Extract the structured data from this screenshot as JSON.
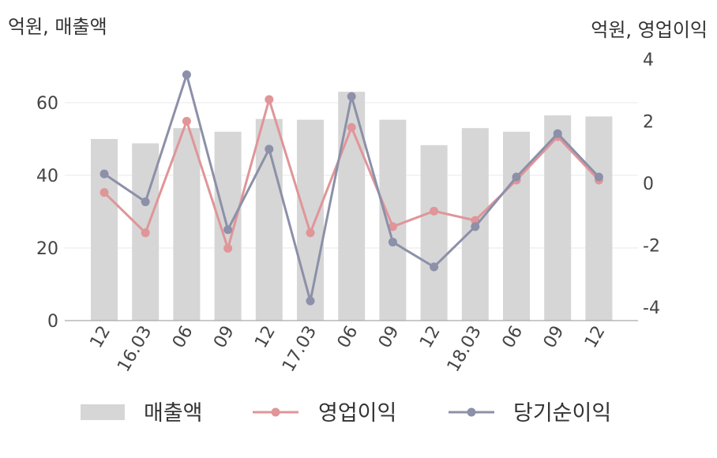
{
  "chart_data": {
    "type": "bar+line",
    "categories": [
      "12",
      "16.03",
      "06",
      "09",
      "12",
      "17.03",
      "06",
      "09",
      "12",
      "18.03",
      "06",
      "09",
      "12"
    ],
    "left_axis": {
      "label": "억원, 매출액",
      "ylim": [
        0,
        70
      ],
      "ticks": [
        "0",
        "20",
        "40",
        "60"
      ]
    },
    "right_axis": {
      "label": "억원, 영업이익",
      "ylim": [
        -4.3,
        4
      ],
      "ticks": [
        "-4",
        "-2",
        "0",
        "2",
        "4"
      ]
    },
    "grid": "horizontal",
    "legend_position": "bottom",
    "series": [
      {
        "name": "매출액",
        "type": "bar",
        "axis": "left",
        "values": [
          50,
          48.8,
          53,
          52,
          55.5,
          55.3,
          63,
          55.3,
          48.3,
          53,
          52,
          56.5,
          56.2
        ]
      },
      {
        "name": "영업이익",
        "type": "line",
        "axis": "right",
        "values": [
          -0.3,
          -1.6,
          2.0,
          -2.1,
          2.7,
          -1.6,
          1.8,
          -1.4,
          -0.9,
          -1.2,
          0.1,
          1.5,
          0.1
        ]
      },
      {
        "name": "당기순이익",
        "type": "line",
        "axis": "right",
        "values": [
          0.3,
          -0.6,
          3.5,
          -1.5,
          1.1,
          -3.8,
          2.8,
          -1.9,
          -2.7,
          -1.4,
          0.2,
          1.6,
          0.2
        ]
      }
    ],
    "colors": {
      "bar": "#d6d6d6",
      "op_profit": "#e09599",
      "net_profit": "#8c90a8",
      "grid": "#e8e8e8",
      "axis": "#aaaaaa"
    }
  }
}
